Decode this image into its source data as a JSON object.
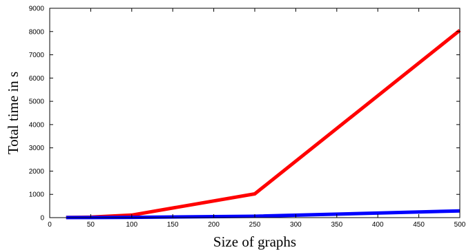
{
  "chart_data": {
    "type": "line",
    "title": "",
    "xlabel": "Size of graphs",
    "ylabel": "Total time in s",
    "xlim": [
      0,
      500
    ],
    "ylim": [
      0,
      9000
    ],
    "x_ticks": [
      0,
      50,
      100,
      150,
      200,
      250,
      300,
      350,
      400,
      450,
      500
    ],
    "y_ticks": [
      0,
      1000,
      2000,
      3000,
      4000,
      5000,
      6000,
      7000,
      8000,
      9000
    ],
    "grid": false,
    "legend": "none",
    "series": [
      {
        "color": "#ff0000",
        "points": [
          [
            20,
            5
          ],
          [
            50,
            20
          ],
          [
            100,
            110
          ],
          [
            250,
            1020
          ],
          [
            500,
            8050
          ]
        ]
      },
      {
        "color": "#0000ff",
        "points": [
          [
            20,
            2
          ],
          [
            50,
            4
          ],
          [
            100,
            12
          ],
          [
            250,
            60
          ],
          [
            500,
            290
          ]
        ]
      }
    ]
  }
}
